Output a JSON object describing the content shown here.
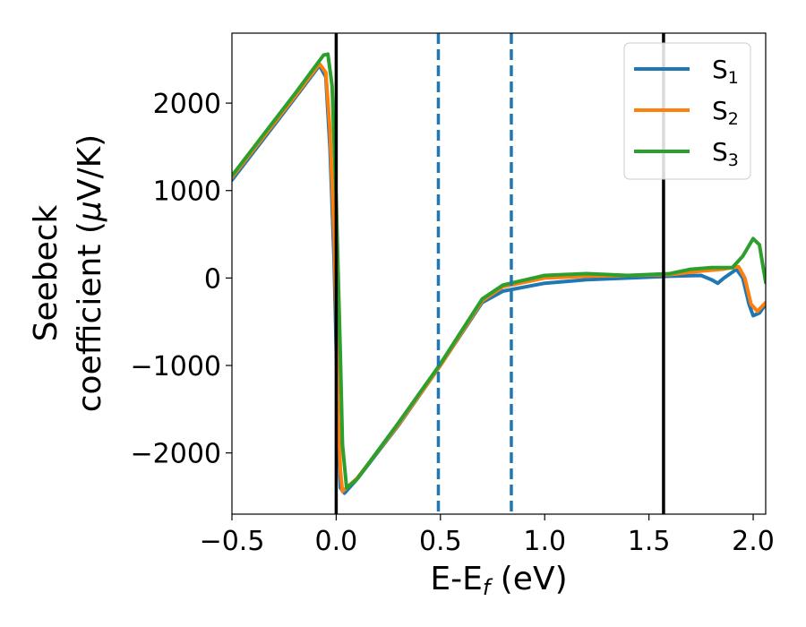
{
  "chart_data": {
    "type": "line",
    "xlabel": "E-E",
    "xlabel_sub": "f",
    "xlabel_unit": " (eV)",
    "ylabel_line1": "Seebeck",
    "ylabel_line2_pre": "coefficient  (",
    "ylabel_line2_mu": "μ",
    "ylabel_line2_post": "V/K)",
    "xlim": [
      -0.5,
      2.06
    ],
    "ylim": [
      -2700,
      2800
    ],
    "x_ticks": [
      -0.5,
      0.0,
      0.5,
      1.0,
      1.5,
      2.0
    ],
    "x_tick_labels": [
      "−0.5",
      "0.0",
      "0.5",
      "1.0",
      "1.5",
      "2.0"
    ],
    "y_ticks": [
      -2000,
      -1000,
      0,
      1000,
      2000
    ],
    "y_tick_labels": [
      "−2000",
      "−1000",
      "0",
      "1000",
      "2000"
    ],
    "grid": false,
    "legend_position": "top-right",
    "vlines": [
      {
        "x": 0.0,
        "style": "solid",
        "color": "#000000"
      },
      {
        "x": 1.57,
        "style": "solid",
        "color": "#000000"
      },
      {
        "x": 0.49,
        "style": "dashed",
        "color": "#1f77b4"
      },
      {
        "x": 0.84,
        "style": "dashed",
        "color": "#1f77b4"
      }
    ],
    "series": [
      {
        "name": "S",
        "name_sub": "1",
        "color": "#1f77b4",
        "points": [
          [
            -0.5,
            1120
          ],
          [
            -0.2,
            2050
          ],
          [
            -0.08,
            2430
          ],
          [
            -0.05,
            2300
          ],
          [
            -0.03,
            1500
          ],
          [
            -0.01,
            200
          ],
          [
            0.0,
            -800
          ],
          [
            0.01,
            -1800
          ],
          [
            0.02,
            -2400
          ],
          [
            0.04,
            -2460
          ],
          [
            0.1,
            -2300
          ],
          [
            0.3,
            -1680
          ],
          [
            0.5,
            -1000
          ],
          [
            0.7,
            -280
          ],
          [
            0.8,
            -150
          ],
          [
            1.0,
            -60
          ],
          [
            1.2,
            -20
          ],
          [
            1.4,
            0
          ],
          [
            1.6,
            20
          ],
          [
            1.75,
            30
          ],
          [
            1.8,
            -20
          ],
          [
            1.83,
            -60
          ],
          [
            1.86,
            0
          ],
          [
            1.92,
            100
          ],
          [
            1.95,
            0
          ],
          [
            1.98,
            -300
          ],
          [
            2.0,
            -430
          ],
          [
            2.03,
            -400
          ],
          [
            2.06,
            -300
          ]
        ]
      },
      {
        "name": "S",
        "name_sub": "2",
        "color": "#ff7f0e",
        "points": [
          [
            -0.5,
            1150
          ],
          [
            -0.2,
            2070
          ],
          [
            -0.08,
            2450
          ],
          [
            -0.05,
            2350
          ],
          [
            -0.03,
            1700
          ],
          [
            -0.01,
            500
          ],
          [
            0.0,
            -400
          ],
          [
            0.01,
            -1600
          ],
          [
            0.02,
            -2200
          ],
          [
            0.03,
            -2440
          ],
          [
            0.1,
            -2290
          ],
          [
            0.3,
            -1670
          ],
          [
            0.5,
            -1000
          ],
          [
            0.7,
            -260
          ],
          [
            0.8,
            -100
          ],
          [
            1.0,
            0
          ],
          [
            1.2,
            20
          ],
          [
            1.4,
            30
          ],
          [
            1.6,
            40
          ],
          [
            1.75,
            80
          ],
          [
            1.85,
            100
          ],
          [
            1.93,
            130
          ],
          [
            1.96,
            0
          ],
          [
            1.99,
            -300
          ],
          [
            2.02,
            -380
          ],
          [
            2.06,
            -280
          ]
        ]
      },
      {
        "name": "S",
        "name_sub": "3",
        "color": "#2ca02c",
        "points": [
          [
            -0.5,
            1170
          ],
          [
            -0.2,
            2100
          ],
          [
            -0.06,
            2550
          ],
          [
            -0.04,
            2560
          ],
          [
            -0.02,
            2200
          ],
          [
            0.0,
            900
          ],
          [
            0.02,
            -900
          ],
          [
            0.03,
            -1900
          ],
          [
            0.05,
            -2400
          ],
          [
            0.1,
            -2300
          ],
          [
            0.3,
            -1650
          ],
          [
            0.5,
            -980
          ],
          [
            0.7,
            -240
          ],
          [
            0.8,
            -80
          ],
          [
            1.0,
            30
          ],
          [
            1.2,
            50
          ],
          [
            1.4,
            30
          ],
          [
            1.6,
            50
          ],
          [
            1.7,
            100
          ],
          [
            1.8,
            120
          ],
          [
            1.9,
            120
          ],
          [
            1.95,
            250
          ],
          [
            2.0,
            450
          ],
          [
            2.03,
            380
          ],
          [
            2.06,
            -50
          ]
        ]
      }
    ]
  }
}
